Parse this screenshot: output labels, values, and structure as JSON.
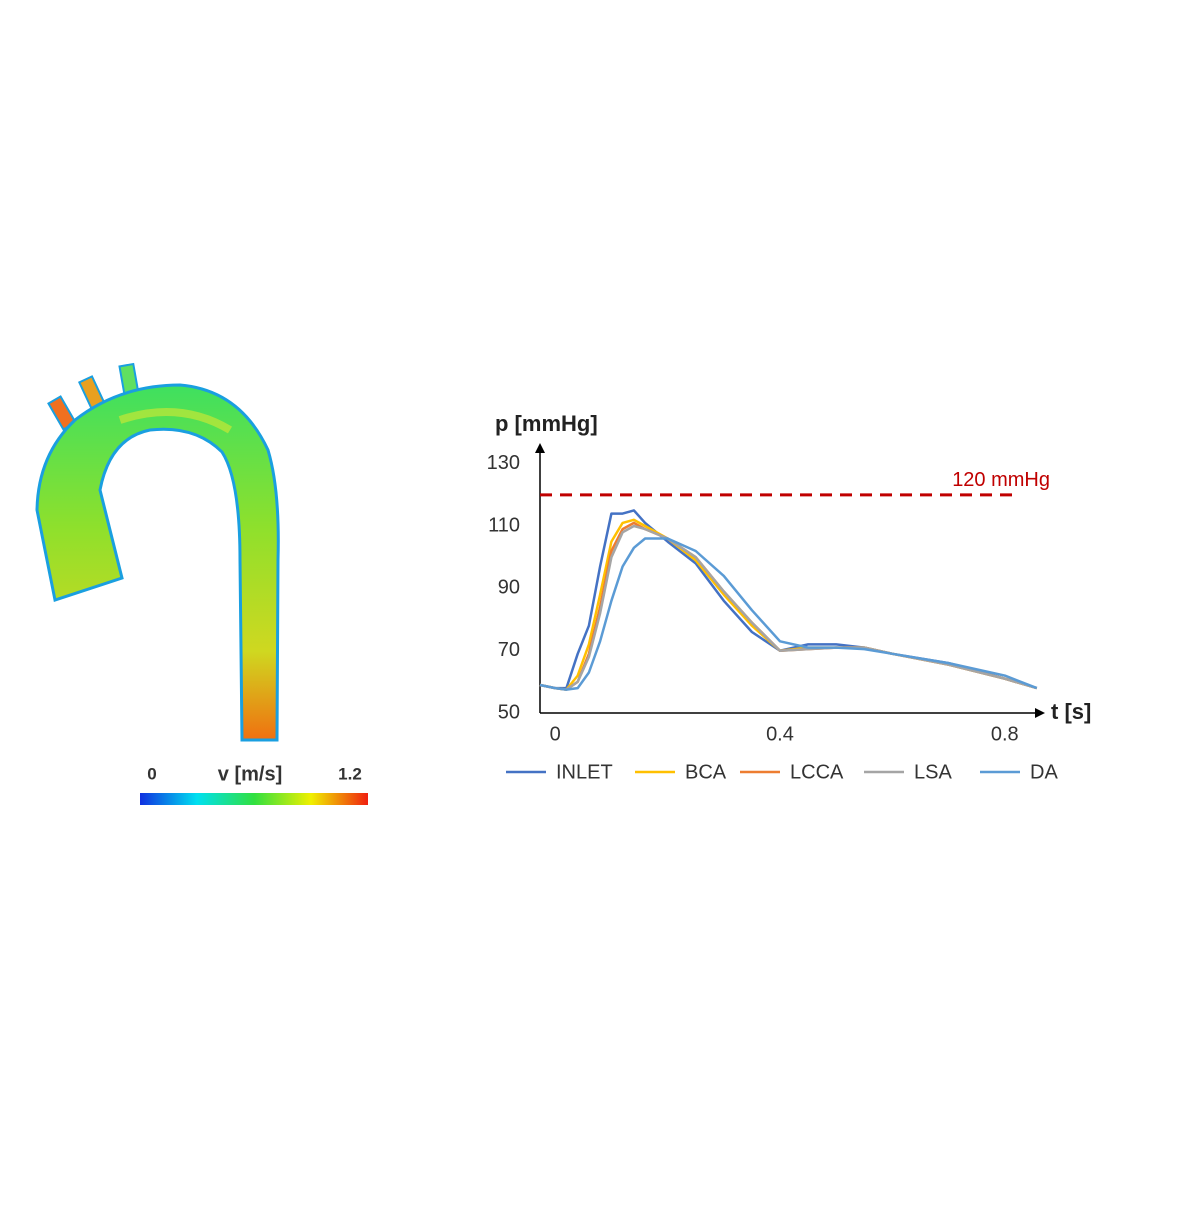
{
  "colorbar": {
    "title": "v [m/s]",
    "min": 0,
    "max": 1.2
  },
  "chart_data": {
    "type": "line",
    "y_label": "p [mmHg]",
    "x_label": "t [s]",
    "x": [
      -0.027,
      0,
      0.02,
      0.04,
      0.06,
      0.08,
      0.1,
      0.12,
      0.14,
      0.16,
      0.2,
      0.25,
      0.3,
      0.35,
      0.4,
      0.45,
      0.5,
      0.55,
      0.6,
      0.7,
      0.8,
      0.857
    ],
    "series": [
      {
        "name": "INLET",
        "color": "#4472c4",
        "values": [
          59,
          58,
          58,
          69,
          78,
          97,
          114,
          114,
          115,
          111,
          105,
          98,
          86,
          76,
          70,
          72,
          72,
          71,
          69,
          66,
          61,
          58
        ]
      },
      {
        "name": "BCA",
        "color": "#ffc000",
        "values": [
          59,
          58,
          57.5,
          62,
          72,
          88,
          105,
          111,
          112,
          110,
          106,
          99,
          88,
          78,
          70,
          71,
          71,
          71,
          69,
          65.5,
          61,
          58
        ]
      },
      {
        "name": "LCCA",
        "color": "#ed7d31",
        "values": [
          59,
          58,
          57.5,
          60,
          69,
          84,
          102,
          109,
          111,
          109,
          106,
          100,
          89,
          79,
          70,
          70.5,
          71,
          71,
          69,
          65.5,
          61,
          58
        ]
      },
      {
        "name": "LSA",
        "color": "#a5a5a5",
        "values": [
          59,
          58,
          57.5,
          60,
          68,
          82,
          100,
          108,
          110,
          109,
          106,
          100,
          89,
          79,
          70,
          70.5,
          71,
          71,
          69,
          65.5,
          61,
          58
        ]
      },
      {
        "name": "DA",
        "color": "#5b9bd5",
        "values": [
          59,
          58,
          57.5,
          58,
          63,
          73,
          86,
          97,
          103,
          106,
          106,
          102,
          94,
          83,
          73,
          71,
          71,
          70.5,
          69,
          66,
          62,
          58
        ]
      }
    ],
    "reference_line": {
      "value": 120,
      "label": "120 mmHg",
      "color": "#c00000"
    },
    "xlim": [
      -0.027,
      0.868
    ],
    "ylim": [
      50,
      136
    ],
    "xticks": [
      0,
      0.4,
      0.8
    ],
    "yticks": [
      50,
      70,
      90,
      110,
      130
    ],
    "grid": false,
    "legend": "bottom"
  }
}
